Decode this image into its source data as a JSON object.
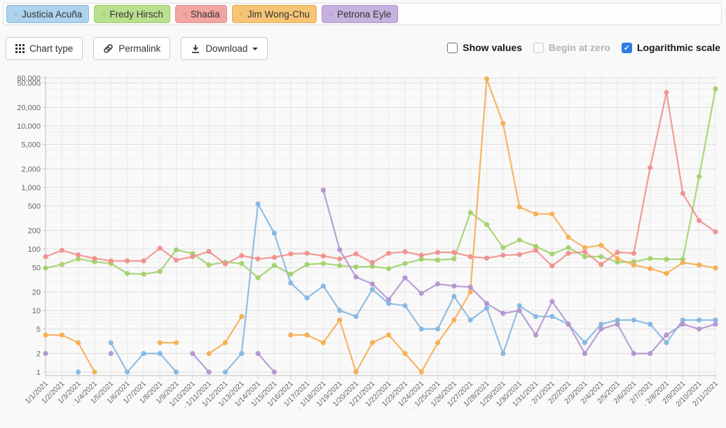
{
  "legend": {
    "remove_icon": "×",
    "items": [
      {
        "label": "Justicia Acuña",
        "bg": "#aed3ee",
        "border": "#8ab8dd",
        "line": "#85b7e2"
      },
      {
        "label": "Fredy Hirsch",
        "bg": "#b9e08e",
        "border": "#9ecb6d",
        "line": "#a2d16c"
      },
      {
        "label": "Shadia",
        "bg": "#f2a5a2",
        "border": "#e08f8c",
        "line": "#f0908c"
      },
      {
        "label": "Jim Wong-Chu",
        "bg": "#f6c475",
        "border": "#e9ae55",
        "line": "#f5ae52"
      },
      {
        "label": "Petrona Eyle",
        "bg": "#c7b1de",
        "border": "#b097c9",
        "line": "#b295cf"
      }
    ]
  },
  "toolbar": {
    "chart_type_label": "Chart type",
    "permalink_label": "Permalink",
    "download_label": "Download"
  },
  "options": {
    "show_values": {
      "label": "Show values",
      "checked": false,
      "disabled": false
    },
    "begin_at_zero": {
      "label": "Begin at zero",
      "checked": false,
      "disabled": true
    },
    "logarithmic_scale": {
      "label": "Logarithmic scale",
      "checked": true,
      "disabled": false
    },
    "check_mark": "✓",
    "checked_color": "#2a7de1"
  },
  "chart_data": {
    "type": "line",
    "log_scale": true,
    "title": "",
    "xlabel": "",
    "ylabel": "",
    "ylim": [
      1,
      60000
    ],
    "grid": true,
    "legend_position": "top-tags",
    "y_ticks": [
      {
        "label": "60,000",
        "value": 60000
      },
      {
        "label": "50,000",
        "value": 50000
      },
      {
        "label": "20,000",
        "value": 20000
      },
      {
        "label": "10,000",
        "value": 10000
      },
      {
        "label": "5,000",
        "value": 5000
      },
      {
        "label": "2,000",
        "value": 2000
      },
      {
        "label": "1,000",
        "value": 1000
      },
      {
        "label": "500",
        "value": 500
      },
      {
        "label": "200",
        "value": 200
      },
      {
        "label": "100",
        "value": 100
      },
      {
        "label": "50",
        "value": 50
      },
      {
        "label": "20",
        "value": 20
      },
      {
        "label": "10",
        "value": 10
      },
      {
        "label": "5",
        "value": 5
      },
      {
        "label": "2",
        "value": 2
      },
      {
        "label": "1",
        "value": 1
      }
    ],
    "x_labels": [
      "1/1/2021",
      "1/2/2021",
      "1/3/2021",
      "· 1/4/2021",
      "1/5/2021",
      "1/6/2021",
      "1/7/2021",
      "1/8/2021",
      "1/9/2021",
      "1/10/2021",
      "· 1/11/2021",
      "1/12/2021",
      "1/13/2021",
      "1/14/2021",
      "1/15/2021",
      "1/16/2021",
      "1/17/2021",
      "· 1/18/2021",
      "1/19/2021",
      "1/20/2021",
      "1/21/2021",
      "1/22/2021",
      "1/23/2021",
      "1/24/2021",
      "· 1/25/2021",
      "1/26/2021",
      "1/27/2021",
      "1/28/2021",
      "1/29/2021",
      "1/30/2021",
      "1/31/2021",
      "· 2/1/2021",
      "2/2/2021",
      "2/3/2021",
      "2/4/2021",
      "2/5/2021",
      "2/6/2021",
      "2/7/2021",
      "· 2/8/2021",
      "2/9/2021",
      "2/10/2021",
      "2/11/2021"
    ],
    "series": [
      {
        "name": "Justicia Acuña",
        "color": "#85b7e2",
        "values": [
          null,
          null,
          1,
          null,
          3,
          1,
          2,
          2,
          1,
          null,
          null,
          1,
          2,
          540,
          180,
          28,
          16,
          25,
          10,
          8,
          22,
          13,
          12,
          5,
          5,
          17,
          7,
          11,
          2,
          12,
          8,
          8,
          6,
          3,
          6,
          7,
          7,
          6,
          3,
          7,
          7,
          7
        ]
      },
      {
        "name": "Fredy Hirsch",
        "color": "#a2d16c",
        "values": [
          49,
          56,
          69,
          62,
          58,
          40,
          39,
          43,
          97,
          84,
          55,
          61,
          58,
          34,
          54,
          39,
          56,
          58,
          54,
          51,
          52,
          48,
          58,
          68,
          66,
          69,
          390,
          250,
          105,
          140,
          110,
          83,
          105,
          75,
          75,
          61,
          62,
          70,
          68,
          68,
          1500,
          40000
        ]
      },
      {
        "name": "Shadia",
        "color": "#f0908c",
        "values": [
          75,
          95,
          80,
          70,
          64,
          64,
          64,
          103,
          66,
          75,
          91,
          57,
          78,
          69,
          73,
          83,
          85,
          77,
          69,
          83,
          60,
          85,
          90,
          79,
          88,
          88,
          75,
          71,
          79,
          81,
          95,
          53,
          85,
          90,
          56,
          88,
          85,
          2100,
          35000,
          800,
          290,
          190
        ]
      },
      {
        "name": "Jim Wong-Chu",
        "color": "#f5ae52",
        "values": [
          4,
          4,
          3,
          1,
          null,
          null,
          null,
          3,
          3,
          null,
          2,
          3,
          8,
          null,
          null,
          4,
          4,
          3,
          7,
          1,
          3,
          4,
          2,
          1,
          3,
          7,
          20,
          58000,
          11000,
          480,
          370,
          370,
          155,
          105,
          115,
          70,
          55,
          48,
          40,
          60,
          55,
          49
        ]
      },
      {
        "name": "Petrona Eyle",
        "color": "#b295cf",
        "values": [
          2,
          null,
          null,
          null,
          2,
          null,
          null,
          null,
          null,
          2,
          1,
          null,
          null,
          2,
          1,
          null,
          null,
          900,
          97,
          35,
          27,
          15,
          34,
          19,
          27,
          25,
          24,
          13,
          9,
          10,
          4,
          14,
          6,
          2,
          5,
          6,
          2,
          2,
          4,
          6,
          5,
          6
        ]
      }
    ]
  }
}
